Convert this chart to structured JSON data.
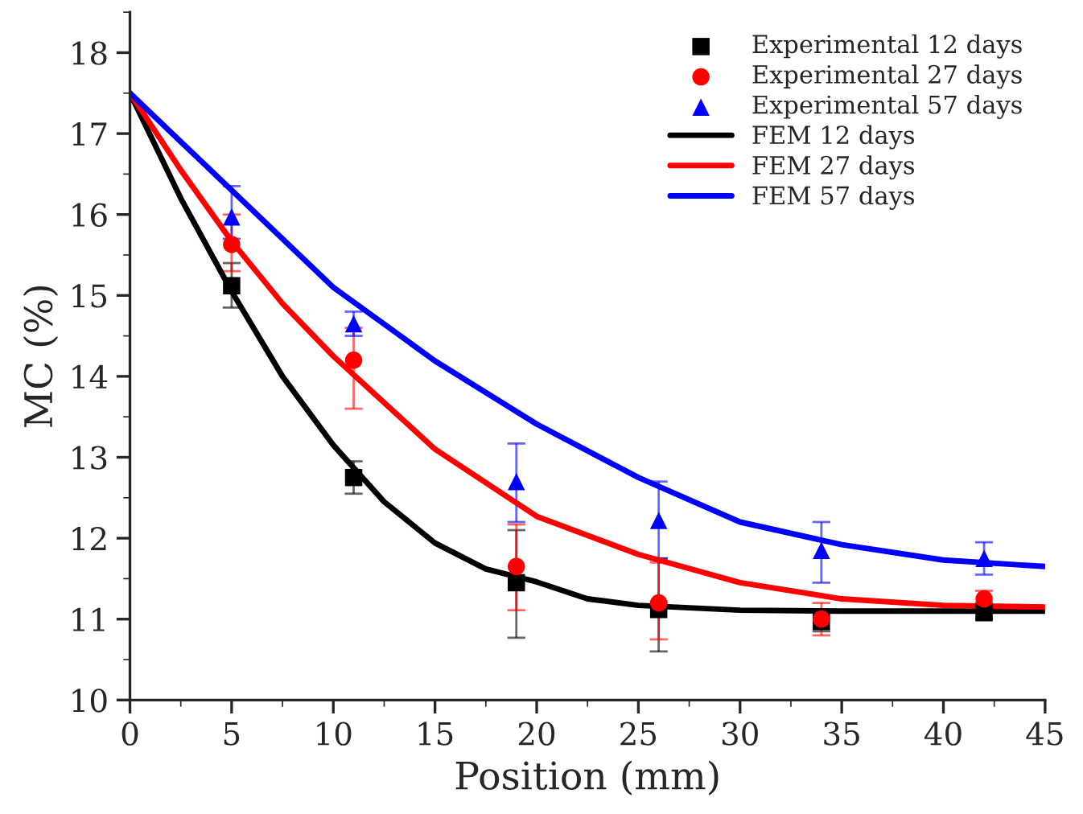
{
  "chart_data": {
    "type": "scatter",
    "xlabel": "Position (mm)",
    "ylabel": "MC (%)",
    "xlim": [
      0,
      45
    ],
    "xticks": [
      0,
      5,
      10,
      15,
      20,
      25,
      30,
      35,
      40,
      45
    ],
    "ylim": [
      10,
      18.5
    ],
    "yticks": [
      10,
      11,
      12,
      13,
      14,
      15,
      16,
      17,
      18
    ],
    "grid": false,
    "legend": "top right",
    "series": [
      {
        "name": "Experimental 12 days",
        "marker": "square",
        "color": "#000000",
        "x": [
          5,
          11,
          19,
          26,
          34,
          42
        ],
        "values": [
          15.12,
          12.75,
          11.45,
          11.12,
          10.97,
          11.08
        ],
        "errors": [
          [
            14.85,
            15.4
          ],
          [
            12.55,
            12.95
          ],
          [
            10.77,
            12.1
          ],
          [
            10.6,
            11.75
          ],
          [
            10.85,
            11.1
          ],
          [
            11.0,
            11.2
          ]
        ]
      },
      {
        "name": "Experimental 27 days",
        "marker": "circle",
        "color": "#ff0000",
        "x": [
          5,
          11,
          19,
          26,
          34,
          42
        ],
        "values": [
          15.63,
          14.2,
          11.65,
          11.2,
          11.0,
          11.25
        ],
        "errors": [
          [
            15.3,
            16.0
          ],
          [
            13.6,
            14.6
          ],
          [
            11.11,
            12.17
          ],
          [
            10.75,
            11.7
          ],
          [
            10.8,
            11.2
          ],
          [
            11.1,
            11.35
          ]
        ]
      },
      {
        "name": "Experimental 57 days",
        "marker": "triangle",
        "color": "#0000ff",
        "x": [
          5,
          11,
          19,
          26,
          34,
          42
        ],
        "values": [
          15.97,
          14.65,
          12.7,
          12.22,
          11.85,
          11.75
        ],
        "errors": [
          [
            15.7,
            16.35
          ],
          [
            14.5,
            14.8
          ],
          [
            12.2,
            13.17
          ],
          [
            11.75,
            12.7
          ],
          [
            11.45,
            12.2
          ],
          [
            11.55,
            11.95
          ]
        ]
      },
      {
        "name": "FEM 12 days",
        "type": "line",
        "line_style": "solid",
        "color": "#000000",
        "x": [
          0,
          2.5,
          5,
          7.5,
          10,
          12.5,
          15,
          17.5,
          20,
          22.5,
          25,
          30,
          35,
          40,
          45
        ],
        "values": [
          17.5,
          16.2,
          15.05,
          14.0,
          13.15,
          12.45,
          11.94,
          11.62,
          11.46,
          11.25,
          11.17,
          11.11,
          11.1,
          11.1,
          11.1
        ]
      },
      {
        "name": "FEM 27 days",
        "type": "line",
        "line_style": "solid",
        "color": "#ff0000",
        "x": [
          0,
          2.5,
          5,
          7.5,
          10,
          15,
          20,
          25,
          30,
          35,
          40,
          45
        ],
        "values": [
          17.5,
          16.55,
          15.67,
          14.9,
          14.25,
          13.1,
          12.27,
          11.8,
          11.45,
          11.25,
          11.17,
          11.15
        ]
      },
      {
        "name": "FEM 57 days",
        "type": "line",
        "line_style": "solid",
        "color": "#0000ff",
        "x": [
          0,
          2.5,
          5,
          10,
          15,
          20,
          25,
          30,
          35,
          40,
          45
        ],
        "values": [
          17.5,
          16.9,
          16.3,
          15.1,
          14.19,
          13.41,
          12.75,
          12.2,
          11.92,
          11.73,
          11.65
        ]
      }
    ]
  }
}
